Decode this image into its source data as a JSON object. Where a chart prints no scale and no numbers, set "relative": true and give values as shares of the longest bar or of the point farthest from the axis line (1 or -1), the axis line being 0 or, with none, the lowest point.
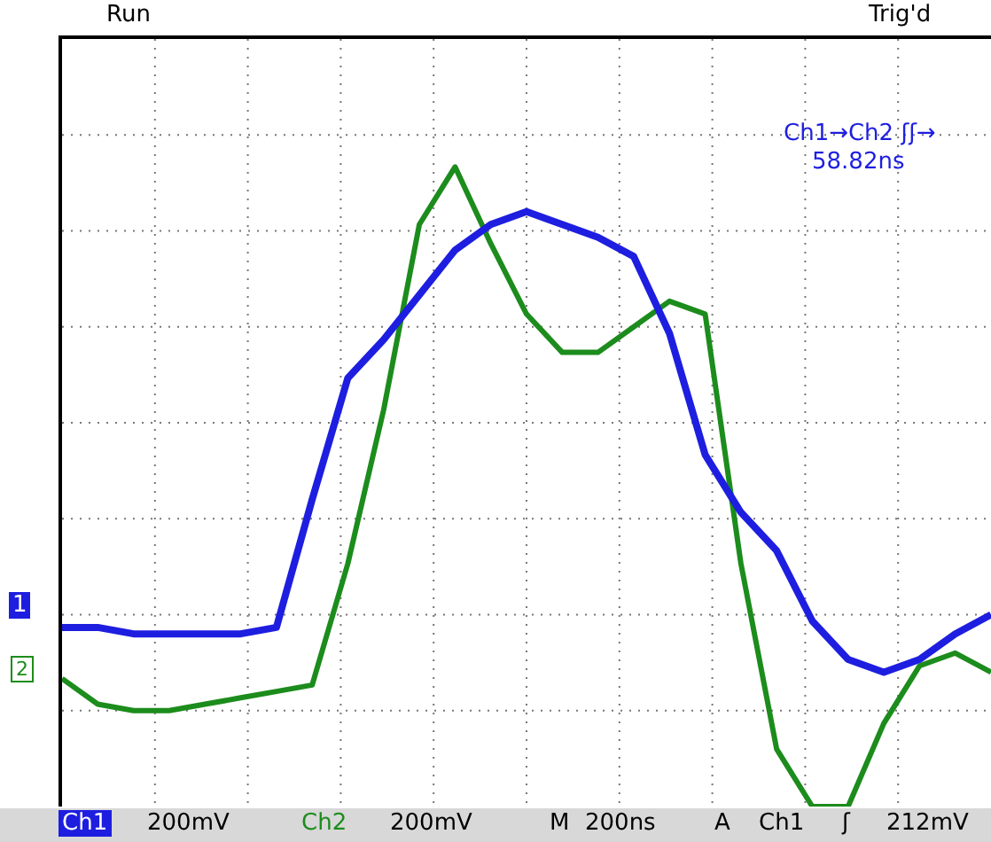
{
  "chart_data": {
    "type": "line",
    "relative": true,
    "grid": true,
    "legend": false,
    "marker": "none",
    "line_style": "solid",
    "categories": [
      null,
      null,
      null,
      null,
      null,
      null,
      null,
      null,
      null,
      null,
      null,
      null,
      null,
      null,
      null,
      null,
      null,
      null,
      null,
      null,
      null,
      null,
      null,
      null,
      null,
      null,
      null
    ],
    "series": [
      {
        "color": "#1e1ee0",
        "values": [
          0.28,
          0.28,
          0.27,
          0.27,
          0.27,
          0.27,
          0.28,
          0.48,
          0.67,
          0.73,
          0.8,
          0.87,
          0.91,
          0.93,
          0.91,
          0.89,
          0.86,
          0.74,
          0.55,
          0.46,
          0.4,
          0.29,
          0.23,
          0.21,
          0.23,
          0.27,
          0.3
        ]
      },
      {
        "color": "#1c8c1c",
        "values": [
          0.2,
          0.16,
          0.15,
          0.15,
          0.16,
          0.17,
          0.18,
          0.19,
          0.38,
          0.62,
          0.91,
          1.0,
          0.88,
          0.77,
          0.71,
          0.71,
          0.75,
          0.79,
          0.77,
          0.38,
          0.09,
          0,
          0,
          0.13,
          0.22,
          0.24,
          0.21
        ]
      }
    ],
    "annotations": [
      "Run",
      "Trig'd",
      "Ch1→Ch2 ʃʃ→",
      "58.82ns",
      "1",
      "2",
      "Ch1",
      "200mV",
      "Ch2",
      "200mV",
      "M",
      "200ns",
      "A",
      "Ch1",
      "ʃ",
      "212mV"
    ]
  }
}
